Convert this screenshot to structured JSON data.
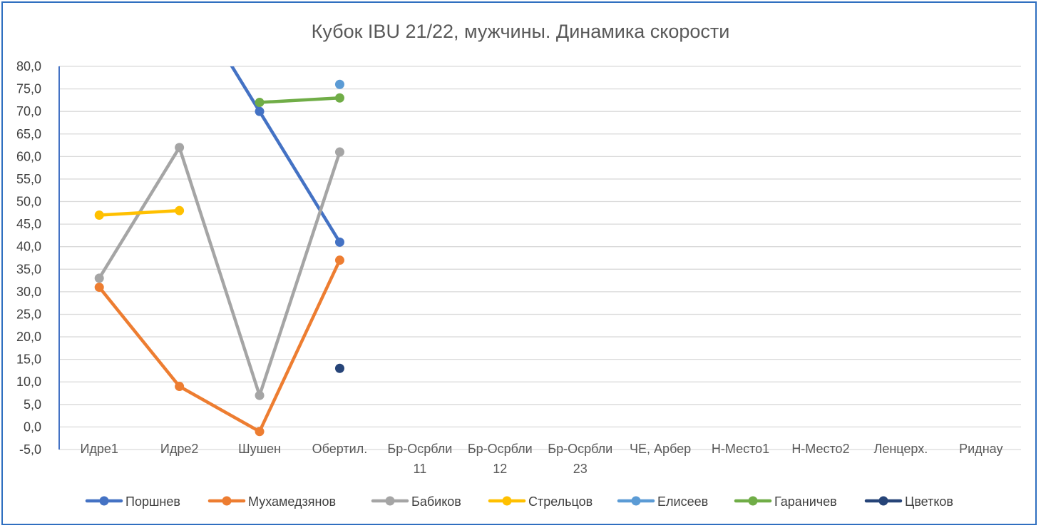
{
  "chart_data": {
    "type": "line",
    "title": "Кубок IBU 21/22, мужчины. Динамика скорости",
    "xlabel": "",
    "ylabel": "",
    "ylim": [
      -5,
      80
    ],
    "yticks": [
      "80,0",
      "75,0",
      "70,0",
      "65,0",
      "60,0",
      "55,0",
      "50,0",
      "45,0",
      "40,0",
      "35,0",
      "30,0",
      "25,0",
      "20,0",
      "15,0",
      "10,0",
      "5,0",
      "0,0",
      "-5,0"
    ],
    "negative_tick_color": "#e00000",
    "grid": true,
    "legend_position": "bottom",
    "categories": [
      [
        "Идре1"
      ],
      [
        "Идре2"
      ],
      [
        "Шушен"
      ],
      [
        "Обертил."
      ],
      [
        "Бр-Осрбли",
        "11"
      ],
      [
        "Бр-Осрбли",
        "12"
      ],
      [
        "Бр-Осрбли",
        "23"
      ],
      [
        "ЧЕ, Арбер"
      ],
      [
        "Н-Место1"
      ],
      [
        "Н-Место2"
      ],
      [
        "Ленцерх."
      ],
      [
        "Риднау"
      ]
    ],
    "series": [
      {
        "name": "Поршнев",
        "color": "#4472c4",
        "values": [
          null,
          null,
          70,
          41,
          null,
          null,
          null,
          null,
          null,
          null,
          null,
          null
        ],
        "lead_in_above_axis": true
      },
      {
        "name": "Мухамедзянов",
        "color": "#ed7d31",
        "values": [
          31,
          9,
          -1,
          37,
          null,
          null,
          null,
          null,
          null,
          null,
          null,
          null
        ]
      },
      {
        "name": "Бабиков",
        "color": "#a5a5a5",
        "values": [
          33,
          62,
          7,
          61,
          null,
          null,
          null,
          null,
          null,
          null,
          null,
          null
        ]
      },
      {
        "name": "Стрельцов",
        "color": "#ffc000",
        "values": [
          47,
          48,
          null,
          null,
          null,
          null,
          null,
          null,
          null,
          null,
          null,
          null
        ]
      },
      {
        "name": "Елисеев",
        "color": "#5b9bd5",
        "values": [
          null,
          null,
          null,
          76,
          null,
          null,
          null,
          null,
          null,
          null,
          null,
          null
        ]
      },
      {
        "name": "Гараничев",
        "color": "#70ad47",
        "values": [
          null,
          null,
          72,
          73,
          null,
          null,
          null,
          null,
          null,
          null,
          null,
          null
        ]
      },
      {
        "name": "Цветков",
        "color": "#264478",
        "values": [
          null,
          null,
          null,
          13,
          null,
          null,
          null,
          null,
          null,
          null,
          null,
          null
        ]
      }
    ]
  }
}
